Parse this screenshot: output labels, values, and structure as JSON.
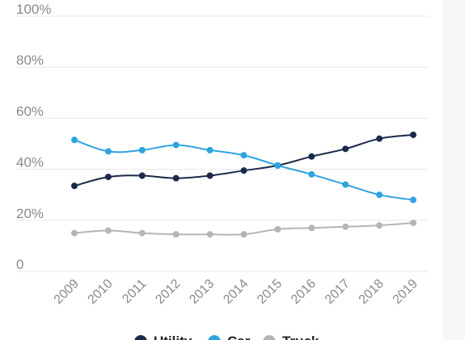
{
  "chart_data": {
    "type": "line",
    "categories": [
      "2009",
      "2010",
      "2011",
      "2012",
      "2013",
      "2014",
      "2015",
      "2016",
      "2017",
      "2018",
      "2019"
    ],
    "series": [
      {
        "name": "Utility",
        "color": "#1b2a4a",
        "values": [
          33.5,
          37,
          37.5,
          36.5,
          37.5,
          39.5,
          41.5,
          45,
          48,
          52,
          53.5
        ]
      },
      {
        "name": "Car",
        "color": "#2ea3e0",
        "values": [
          51.5,
          47,
          47.5,
          49.5,
          47.5,
          45.5,
          41.5,
          38,
          34,
          30,
          28
        ]
      },
      {
        "name": "Truck",
        "color": "#b5b5b5",
        "values": [
          15,
          16,
          15,
          14.5,
          14.5,
          14.5,
          16.5,
          17,
          17.5,
          18,
          19
        ]
      }
    ],
    "ylim": [
      0,
      100
    ],
    "yticks": [
      "0",
      "20%",
      "40%",
      "60%",
      "80%",
      "100%"
    ],
    "ytick_values": [
      0,
      20,
      40,
      60,
      80,
      100
    ],
    "grid": true,
    "legend": "bottom"
  }
}
